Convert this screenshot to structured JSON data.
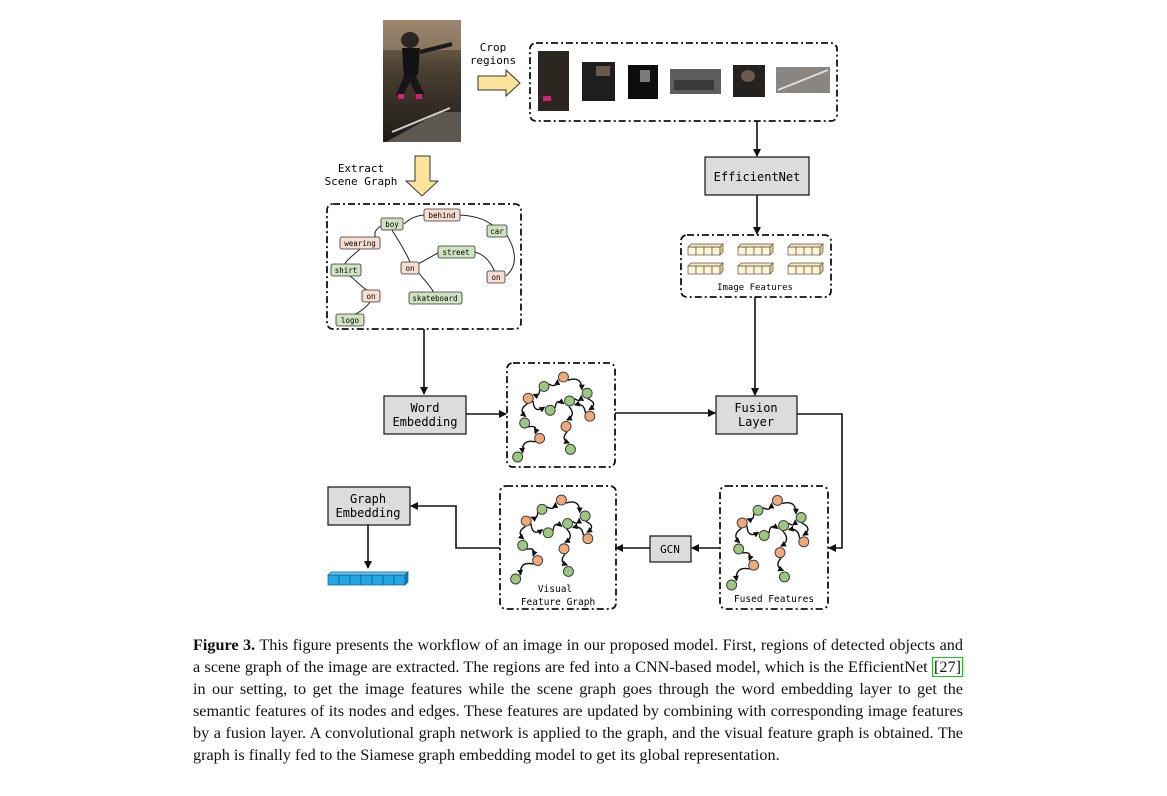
{
  "figure": {
    "labels": {
      "crop_regions_1": "Crop",
      "crop_regions_2": "regions",
      "extract_1": "Extract",
      "extract_2": "Scene Graph",
      "efficientnet": "EfficientNet",
      "image_features": "Image Features",
      "word_embedding_1": "Word",
      "word_embedding_2": "Embedding",
      "fusion_1": "Fusion",
      "fusion_2": "Layer",
      "graph_embedding_1": "Graph",
      "graph_embedding_2": "Embedding",
      "gcn": "GCN",
      "visual_graph_1": "Visual",
      "visual_graph_2": "Feature Graph",
      "fused_features": "Fused Features"
    },
    "scene_graph": {
      "objects": [
        "boy",
        "car",
        "shirt",
        "street",
        "skateboard",
        "logo"
      ],
      "relations": [
        "behind",
        "wearing",
        "on",
        "on",
        "on"
      ]
    },
    "colors": {
      "object_node": "#cfe3c0",
      "relation_node": "#f8ddd0",
      "graph_green": "#9cc77e",
      "graph_orange": "#f0a878",
      "process_box": "#dcdcdc",
      "arrow_fill": "#fbe49a",
      "embedding_vector": "#23a7e3"
    }
  },
  "caption": {
    "label": "Figure 3.",
    "text": "This figure presents the workflow of an image in our proposed model. First, regions of detected objects and a scene graph of the image are extracted. The regions are fed into a CNN-based model, which is the EfficientNet",
    "citation": "[27]",
    "text_after": "in our setting, to get the image features while the scene graph goes through the word embedding layer to get the semantic features of its nodes and edges. These features are updated by combining with corresponding image features by a fusion layer. A convolutional graph network is applied to the graph, and the visual feature graph is obtained. The graph is finally fed to the Siamese graph embedding model to get its global representation."
  }
}
